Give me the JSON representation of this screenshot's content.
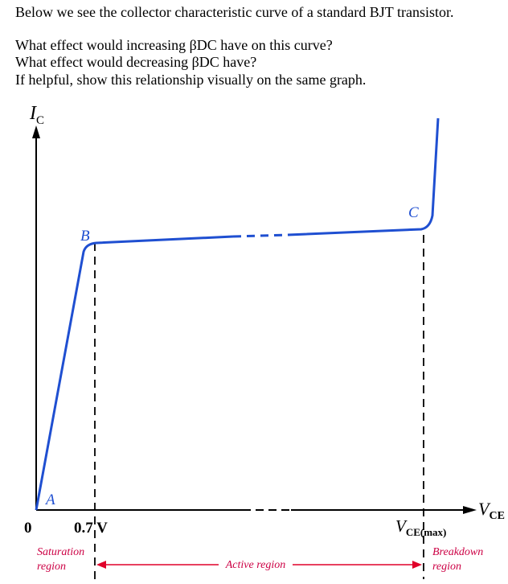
{
  "question": {
    "intro": "Below we see the collector characteristic curve of a standard BJT transistor.",
    "line1": "What effect would increasing βDC have on this curve?",
    "line2": "What effect would decreasing βDC have?",
    "line3": "If helpful, show this relationship visually on the same graph."
  },
  "diagram": {
    "y_axis_label": {
      "main": "I",
      "sub": "C"
    },
    "x_axis_label": {
      "main": "V",
      "sub": "CE"
    },
    "origin_label": "0",
    "point_a": "A",
    "point_b": "B",
    "point_c": "C",
    "tick_07": "0.7 V",
    "vce_max": {
      "main": "V",
      "sub": "CE(max)"
    },
    "saturation": {
      "line1": "Saturation",
      "line2": "region"
    },
    "active": "Active region",
    "breakdown": {
      "line1": "Breakdown",
      "line2": "region"
    },
    "colors": {
      "curve": "#1f4fd1",
      "region_label": "#cc0044",
      "arrow": "#e0002a"
    }
  }
}
